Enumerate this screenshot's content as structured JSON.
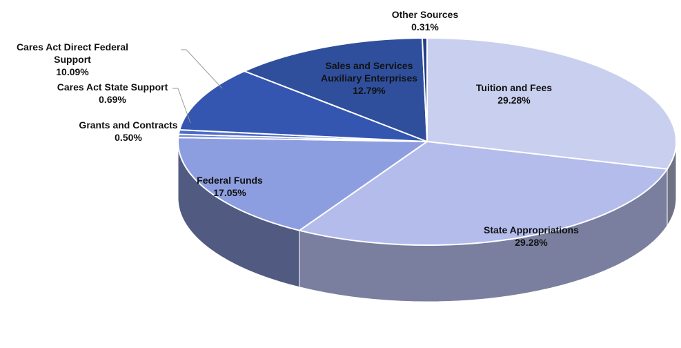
{
  "chart_data": {
    "type": "pie",
    "style": "3d",
    "start": "12 o'clock, clockwise",
    "slices": [
      {
        "label": "Tuition and Fees",
        "value": 29.28,
        "value_label": "29.28%",
        "color": "#c9cfee"
      },
      {
        "label": "State Appropriations",
        "value": 29.28,
        "value_label": "29.28%",
        "color": "#b4bcec"
      },
      {
        "label": "Federal Funds",
        "value": 17.05,
        "value_label": "17.05%",
        "color": "#8d9ee0"
      },
      {
        "label": "Grants and Contracts",
        "value": 0.5,
        "value_label": "0.50%",
        "color": "#7488d6"
      },
      {
        "label": "Cares Act State Support",
        "value": 0.69,
        "value_label": "0.69%",
        "color": "#4d6cc8"
      },
      {
        "label": "Cares Act Direct Federal Support",
        "value": 10.09,
        "value_label": "10.09%",
        "color": "#3556b0"
      },
      {
        "label": "Sales and Services Auxiliary Enterprises",
        "value": 12.79,
        "value_label": "12.79%",
        "color": "#2f4f9c"
      },
      {
        "label": "Other Sources",
        "value": 0.31,
        "value_label": "0.31%",
        "color": "#24408a"
      }
    ]
  }
}
